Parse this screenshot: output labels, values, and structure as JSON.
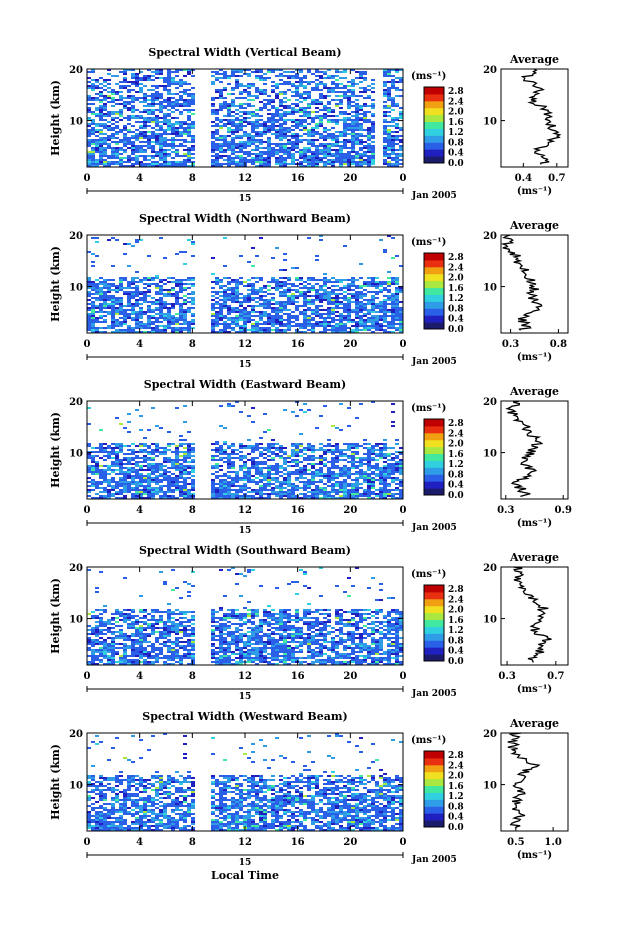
{
  "figure": {
    "xlabel": "Local Time",
    "date_label": "Jan 2005",
    "day_label": "15",
    "unit_label": "(ms⁻¹)",
    "colorbar_ticks": [
      "2.8",
      "2.4",
      "2.0",
      "1.6",
      "1.2",
      "0.8",
      "0.4",
      "0.0"
    ],
    "colors": {
      "scale": [
        "#1b1b6b",
        "#2020c0",
        "#2a5fe8",
        "#2f9ce8",
        "#30d0e0",
        "#40e8a0",
        "#a8e840",
        "#f0e020",
        "#f0a010",
        "#e83010",
        "#c00000"
      ],
      "profile_line": "#000000"
    }
  },
  "chart_data": [
    {
      "type": "heatmap",
      "title": "Spectral Width (Vertical Beam)",
      "xlabel": "Local Time",
      "ylabel": "Height (km)",
      "x_ticks": [
        "0",
        "4",
        "8",
        "12",
        "16",
        "20",
        "0"
      ],
      "y_ticks": [
        "20",
        "10"
      ],
      "xlim": [
        0,
        24
      ],
      "ylim": [
        1,
        20
      ],
      "colorbar_range": [
        0.0,
        2.8
      ],
      "data_gaps_hours": [
        [
          8.1,
          9.3
        ],
        [
          21.8,
          22.3
        ]
      ],
      "coverage_top_km": 19.5,
      "profile": {
        "title": "Average",
        "xlabel": "(ms⁻¹)",
        "x_ticks": [
          "0.4",
          "0.7"
        ],
        "x_tick_values": [
          0.4,
          0.7
        ],
        "xlim": [
          0.2,
          0.8
        ],
        "heights_km": [
          2,
          4,
          6,
          8,
          10,
          12,
          14,
          16,
          18,
          20
        ],
        "values": [
          0.58,
          0.52,
          0.65,
          0.7,
          0.6,
          0.62,
          0.45,
          0.55,
          0.42,
          0.52
        ]
      }
    },
    {
      "type": "heatmap",
      "title": "Spectral Width (Northward Beam)",
      "xlabel": "Local Time",
      "ylabel": "Height (km)",
      "x_ticks": [
        "0",
        "4",
        "8",
        "12",
        "16",
        "20",
        "0"
      ],
      "y_ticks": [
        "20",
        "10"
      ],
      "xlim": [
        0,
        24
      ],
      "ylim": [
        1,
        20
      ],
      "colorbar_range": [
        0.0,
        2.8
      ],
      "data_gaps_hours": [
        [
          8.1,
          9.3
        ]
      ],
      "coverage_top_km": 12,
      "profile": {
        "title": "Average",
        "xlabel": "(ms⁻¹)",
        "x_ticks": [
          "0.3",
          "0.8"
        ],
        "x_tick_values": [
          0.3,
          0.8
        ],
        "xlim": [
          0.2,
          0.9
        ],
        "heights_km": [
          2,
          4,
          6,
          8,
          10,
          12,
          14,
          16,
          18,
          20
        ],
        "values": [
          0.45,
          0.42,
          0.6,
          0.52,
          0.55,
          0.48,
          0.4,
          0.35,
          0.25,
          0.3
        ]
      }
    },
    {
      "type": "heatmap",
      "title": "Spectral Width (Eastward Beam)",
      "xlabel": "Local Time",
      "ylabel": "Height (km)",
      "x_ticks": [
        "0",
        "4",
        "8",
        "12",
        "16",
        "20",
        "0"
      ],
      "y_ticks": [
        "20",
        "10"
      ],
      "xlim": [
        0,
        24
      ],
      "ylim": [
        1,
        20
      ],
      "colorbar_range": [
        0.0,
        2.8
      ],
      "data_gaps_hours": [
        [
          8.1,
          9.3
        ]
      ],
      "coverage_top_km": 12,
      "profile": {
        "title": "Average",
        "xlabel": "(ms⁻¹)",
        "x_ticks": [
          "0.3",
          "0.9"
        ],
        "x_tick_values": [
          0.3,
          0.9
        ],
        "xlim": [
          0.25,
          0.95
        ],
        "heights_km": [
          2,
          4,
          6,
          8,
          10,
          12,
          14,
          16,
          18,
          20
        ],
        "values": [
          0.5,
          0.42,
          0.58,
          0.48,
          0.55,
          0.65,
          0.55,
          0.45,
          0.35,
          0.4
        ]
      }
    },
    {
      "type": "heatmap",
      "title": "Spectral Width (Southward Beam)",
      "xlabel": "Local Time",
      "ylabel": "Height (km)",
      "x_ticks": [
        "0",
        "4",
        "8",
        "12",
        "16",
        "20",
        "0"
      ],
      "y_ticks": [
        "20",
        "10"
      ],
      "xlim": [
        0,
        24
      ],
      "ylim": [
        1,
        20
      ],
      "colorbar_range": [
        0.0,
        2.8
      ],
      "data_gaps_hours": [
        [
          8.1,
          9.3
        ]
      ],
      "coverage_top_km": 12,
      "profile": {
        "title": "Average",
        "xlabel": "(ms⁻¹)",
        "x_ticks": [
          "0.3",
          "0.7"
        ],
        "x_tick_values": [
          0.3,
          0.7
        ],
        "xlim": [
          0.25,
          0.8
        ],
        "heights_km": [
          2,
          4,
          6,
          8,
          10,
          12,
          14,
          16,
          18,
          20
        ],
        "values": [
          0.5,
          0.58,
          0.62,
          0.52,
          0.55,
          0.6,
          0.5,
          0.45,
          0.38,
          0.4
        ]
      }
    },
    {
      "type": "heatmap",
      "title": "Spectral Width (Westward Beam)",
      "xlabel": "Local Time",
      "ylabel": "Height (km)",
      "x_ticks": [
        "0",
        "4",
        "8",
        "12",
        "16",
        "20",
        "0"
      ],
      "y_ticks": [
        "20",
        "10"
      ],
      "xlim": [
        0,
        24
      ],
      "ylim": [
        1,
        20
      ],
      "colorbar_range": [
        0.0,
        2.8
      ],
      "data_gaps_hours": [
        [
          8.1,
          9.3
        ]
      ],
      "coverage_top_km": 12,
      "profile": {
        "title": "Average",
        "xlabel": "(ms⁻¹)",
        "x_ticks": [
          "0.5",
          "1.0"
        ],
        "x_tick_values": [
          0.5,
          1.0
        ],
        "xlim": [
          0.3,
          1.2
        ],
        "heights_km": [
          2,
          4,
          6,
          8,
          10,
          12,
          14,
          16,
          18,
          20
        ],
        "values": [
          0.5,
          0.55,
          0.48,
          0.55,
          0.52,
          0.6,
          0.75,
          0.5,
          0.45,
          0.5
        ]
      }
    }
  ]
}
